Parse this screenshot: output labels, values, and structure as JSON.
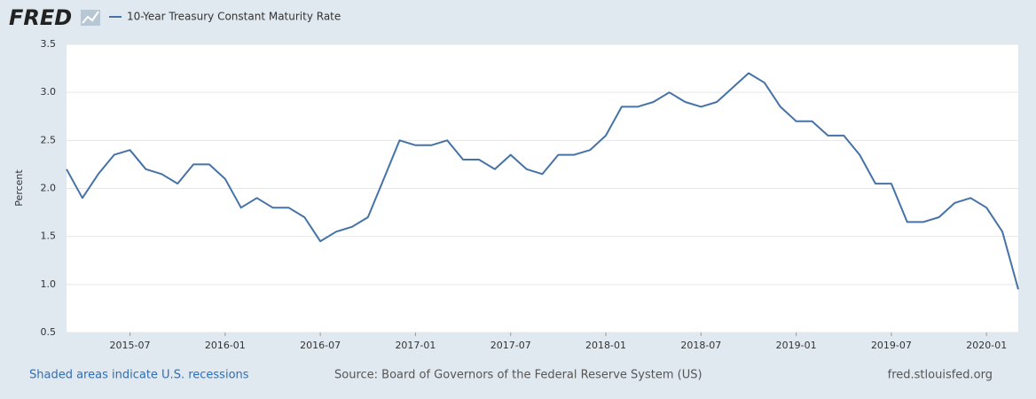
{
  "logo": "FRED",
  "chart_data": {
    "type": "line",
    "y_label": "Percent",
    "x": [
      "2015-03",
      "2015-04",
      "2015-05",
      "2015-06",
      "2015-07",
      "2015-08",
      "2015-09",
      "2015-10",
      "2015-11",
      "2015-12",
      "2016-01",
      "2016-02",
      "2016-03",
      "2016-04",
      "2016-05",
      "2016-06",
      "2016-07",
      "2016-08",
      "2016-09",
      "2016-10",
      "2016-11",
      "2016-12",
      "2017-01",
      "2017-02",
      "2017-03",
      "2017-04",
      "2017-05",
      "2017-06",
      "2017-07",
      "2017-08",
      "2017-09",
      "2017-10",
      "2017-11",
      "2017-12",
      "2018-01",
      "2018-02",
      "2018-03",
      "2018-04",
      "2018-05",
      "2018-06",
      "2018-07",
      "2018-08",
      "2018-09",
      "2018-10",
      "2018-11",
      "2018-12",
      "2019-01",
      "2019-02",
      "2019-03",
      "2019-04",
      "2019-05",
      "2019-06",
      "2019-07",
      "2019-08",
      "2019-09",
      "2019-10",
      "2019-11",
      "2019-12",
      "2020-01",
      "2020-02",
      "2020-03"
    ],
    "series": [
      {
        "name": "10-Year Treasury Constant Maturity Rate",
        "color": "#4572a7",
        "values": [
          2.2,
          1.9,
          2.15,
          2.35,
          2.4,
          2.2,
          2.15,
          2.05,
          2.25,
          2.25,
          2.1,
          1.8,
          1.9,
          1.8,
          1.8,
          1.7,
          1.45,
          1.55,
          1.6,
          1.7,
          2.1,
          2.5,
          2.45,
          2.45,
          2.5,
          2.3,
          2.3,
          2.2,
          2.35,
          2.2,
          2.15,
          2.35,
          2.35,
          2.4,
          2.55,
          2.85,
          2.85,
          2.9,
          3.0,
          2.9,
          2.85,
          2.9,
          3.05,
          3.2,
          3.1,
          2.85,
          2.7,
          2.7,
          2.55,
          2.55,
          2.35,
          2.05,
          2.05,
          1.65,
          1.65,
          1.7,
          1.85,
          1.9,
          1.8,
          1.55,
          0.95
        ]
      }
    ],
    "xlim": [
      "2015-03",
      "2020-03"
    ],
    "xticks": [
      "2015-07",
      "2016-01",
      "2016-07",
      "2017-01",
      "2017-07",
      "2018-01",
      "2018-07",
      "2019-01",
      "2019-07",
      "2020-01"
    ],
    "ylim": [
      0.5,
      3.5
    ],
    "yticks": [
      0.5,
      {
        "value": 1.0,
        "label": "1.0"
      },
      1.5,
      {
        "value": 2.0,
        "label": "2.0"
      },
      2.5,
      {
        "value": 3.0,
        "label": "3.0"
      },
      3.5
    ],
    "grid": true
  },
  "footer": {
    "recessions": "Shaded areas indicate U.S. recessions",
    "source": "Source: Board of Governors of the Federal Reserve System (US)",
    "site": "fred.stlouisfed.org"
  }
}
